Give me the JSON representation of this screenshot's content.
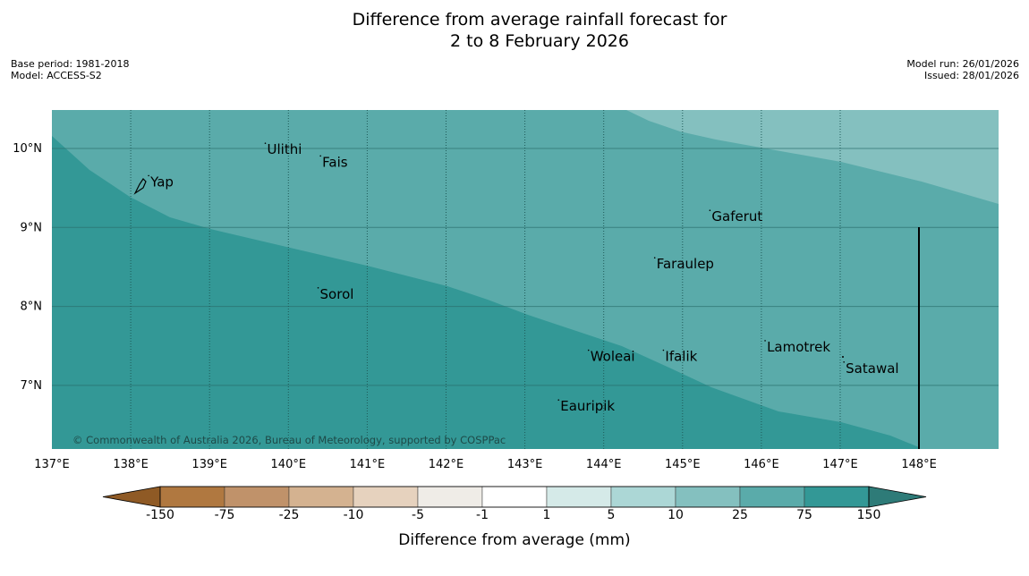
{
  "title_line1": "Difference from average rainfall forecast for",
  "title_line2": "2 to 8 February 2026",
  "base_period": "Base period: 1981-2018",
  "model": "Model: ACCESS-S2",
  "model_run": "Model run: 26/01/2026",
  "issued": "Issued: 28/01/2026",
  "copyright": "© Commonwealth of Australia 2026, Bureau of Meteorology, supported by COSPPac",
  "lon_ticks": [
    "137°E",
    "138°E",
    "139°E",
    "140°E",
    "141°E",
    "142°E",
    "143°E",
    "144°E",
    "145°E",
    "146°E",
    "147°E",
    "148°E"
  ],
  "lat_ticks": [
    "10°N",
    "9°N",
    "8°N",
    "7°N"
  ],
  "places": [
    {
      "name": "Yap",
      "lon": 138.25,
      "lat": 9.52
    },
    {
      "name": "Ulithi",
      "lon": 139.73,
      "lat": 9.93
    },
    {
      "name": "Fais",
      "lon": 140.43,
      "lat": 9.77
    },
    {
      "name": "Gaferut",
      "lon": 145.37,
      "lat": 9.08
    },
    {
      "name": "Faraulep",
      "lon": 144.67,
      "lat": 8.48
    },
    {
      "name": "Sorol",
      "lon": 140.4,
      "lat": 8.1
    },
    {
      "name": "Lamotrek",
      "lon": 146.07,
      "lat": 7.43
    },
    {
      "name": "Satawal",
      "lon": 147.07,
      "lat": 7.16
    },
    {
      "name": "Woleai",
      "lon": 143.83,
      "lat": 7.31
    },
    {
      "name": "Ifalik",
      "lon": 144.78,
      "lat": 7.31
    },
    {
      "name": "Eauripik",
      "lon": 143.45,
      "lat": 6.68
    }
  ],
  "colorbar": {
    "label": "Difference from average (mm)",
    "ticks": [
      "-150",
      "-75",
      "-25",
      "-10",
      "-5",
      "-1",
      "1",
      "5",
      "10",
      "25",
      "75",
      "150"
    ],
    "colors": [
      "#b07840",
      "#c0926a",
      "#d4b290",
      "#e6d2be",
      "#efece7",
      "#ffffff",
      "#d5eae8",
      "#acd7d6",
      "#84c0bf",
      "#5aabaa",
      "#339896"
    ],
    "under_color": "#8f5a25",
    "over_color": "#2e7b78"
  },
  "map_colors": {
    "low": "#339896",
    "mid": "#5aabaa",
    "high": "#84c0bf"
  }
}
